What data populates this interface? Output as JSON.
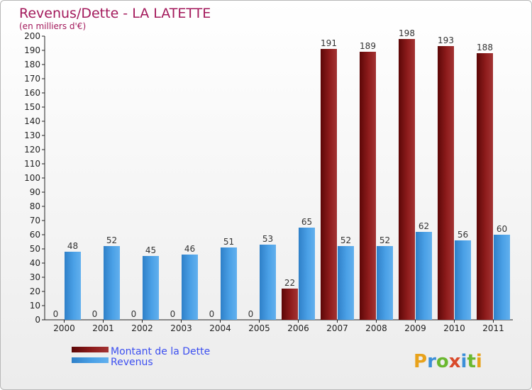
{
  "chart_data": {
    "type": "bar",
    "title": "Revenus/Dette - LA LATETTE",
    "subtitle": "(en milliers d'€)",
    "categories": [
      "2000",
      "2001",
      "2002",
      "2003",
      "2004",
      "2005",
      "2006",
      "2007",
      "2008",
      "2009",
      "2010",
      "2011"
    ],
    "series": [
      {
        "name": "Montant de la Dette",
        "color": "#8b1a1a",
        "values": [
          0,
          0,
          0,
          0,
          0,
          0,
          22,
          191,
          189,
          198,
          193,
          188
        ]
      },
      {
        "name": "Revenus",
        "color": "#3d95dd",
        "values": [
          48,
          52,
          45,
          46,
          51,
          53,
          65,
          52,
          52,
          62,
          56,
          60
        ]
      }
    ],
    "ylim": [
      0,
      200
    ],
    "ytick_step": 10,
    "grid": false,
    "legend_placement": "bottom-left"
  },
  "logo": {
    "text": "Proxiti"
  }
}
